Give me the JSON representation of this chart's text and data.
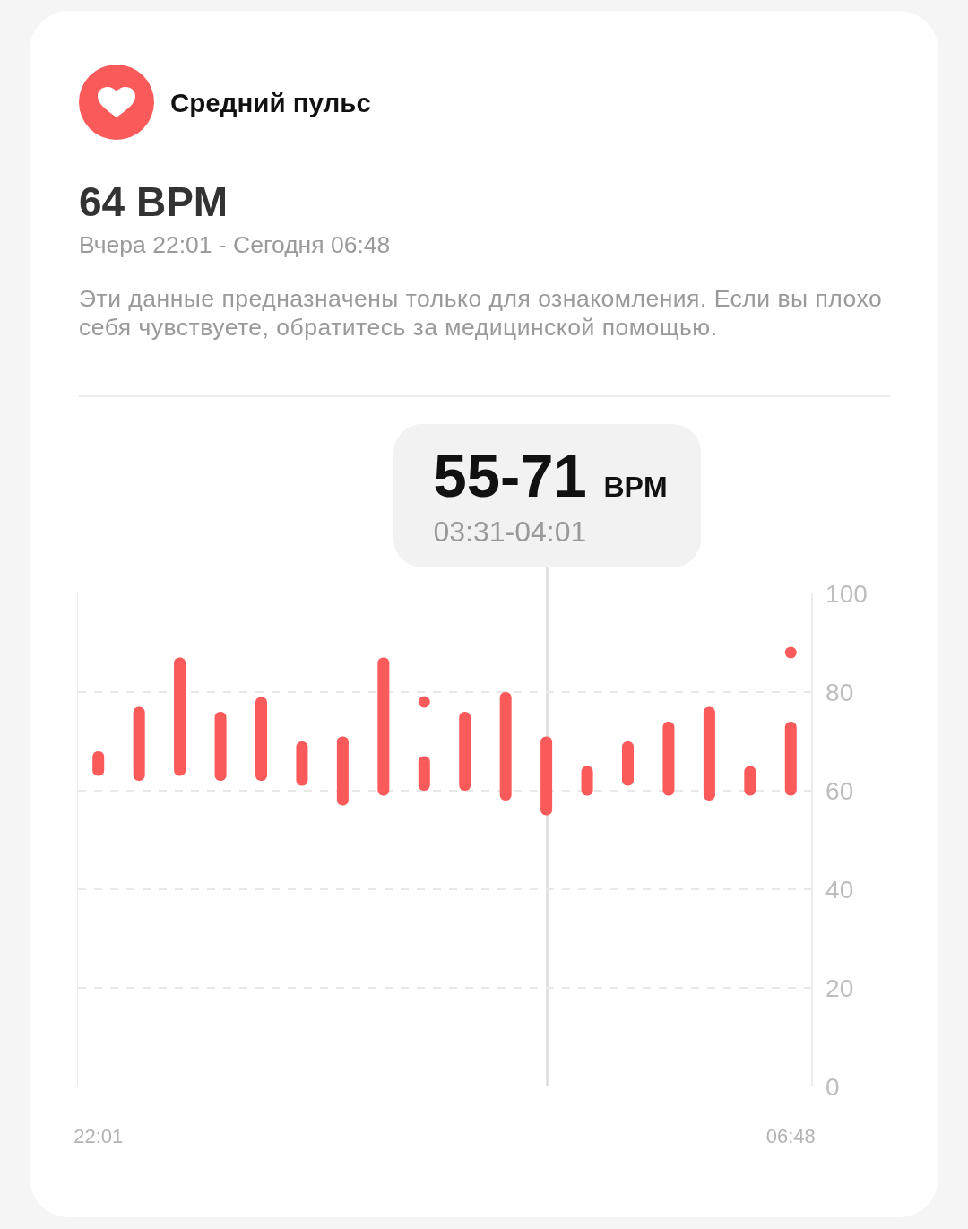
{
  "chart_data": {
    "type": "bar",
    "title": "Средний пульс",
    "subtitle": "64 BPM",
    "annotations": [
      "Вчера 22:01 - Сегодня 06:48",
      "Эти данные предназначены только для ознакомления. Если вы плохо себя чувствуете, обратитесь за медицинской помощью.",
      "55-71 BPM",
      "03:31-04:01"
    ],
    "categories": [
      "22:01",
      null,
      null,
      null,
      null,
      null,
      null,
      null,
      null,
      null,
      null,
      null,
      null,
      null,
      null,
      null,
      null,
      "06:48"
    ],
    "series": [
      {
        "color": "#fa5a5a",
        "base": [
          63,
          62,
          63,
          62,
          62,
          61,
          57,
          59,
          60,
          60,
          58,
          55,
          59,
          61,
          59,
          58,
          59,
          59
        ],
        "values": [
          5,
          15,
          24,
          14,
          17,
          9,
          14,
          28,
          7,
          16,
          22,
          16,
          6,
          9,
          15,
          19,
          6,
          15
        ]
      },
      {
        "type": "scatter",
        "color": "#fa5a5a",
        "marker": "circle",
        "values": [
          null,
          null,
          null,
          null,
          null,
          null,
          null,
          null,
          78,
          null,
          null,
          null,
          null,
          null,
          null,
          null,
          null,
          88
        ]
      }
    ],
    "ylim": [
      0,
      100
    ],
    "yticks": [
      0,
      20,
      40,
      60,
      80,
      100
    ],
    "grid": "y"
  }
}
